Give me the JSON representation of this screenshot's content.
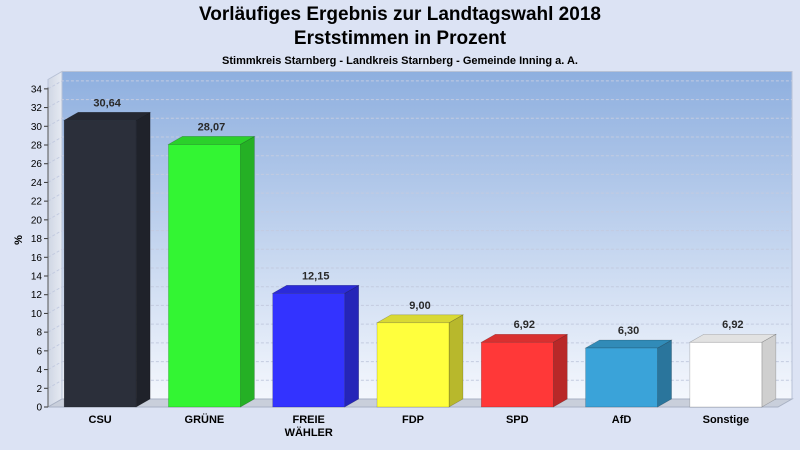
{
  "chart_data": {
    "type": "bar",
    "title": "Vorläufiges Ergebnis zur Landtagswahl 2018",
    "subtitle_1": "Erststimmen in Prozent",
    "subtitle_2": "Stimmkreis Starnberg - Landkreis Starnberg - Gemeinde Inning a. A.",
    "ylabel": "%",
    "ylim": [
      0,
      35
    ],
    "ytick_step": 2,
    "ytick_max": 34,
    "grid": true,
    "categories": [
      "CSU",
      "GRÜNE",
      "FREIE WÄHLER",
      "FDP",
      "SPD",
      "AfD",
      "Sonstige"
    ],
    "category_lines": [
      [
        "CSU"
      ],
      [
        "GRÜNE"
      ],
      [
        "FREIE",
        "WÄHLER"
      ],
      [
        "FDP"
      ],
      [
        "SPD"
      ],
      [
        "AfD"
      ],
      [
        "Sonstige"
      ]
    ],
    "values": [
      30.64,
      28.07,
      12.15,
      9.0,
      6.92,
      6.3,
      6.92
    ],
    "value_labels": [
      "30,64",
      "28,07",
      "12,15",
      "9,00",
      "6,92",
      "6,30",
      "6,92"
    ],
    "colors": [
      "#2b2f3a",
      "#33f533",
      "#3333ff",
      "#ffff3d",
      "#ff3838",
      "#3aa3d9",
      "#ffffff"
    ]
  }
}
